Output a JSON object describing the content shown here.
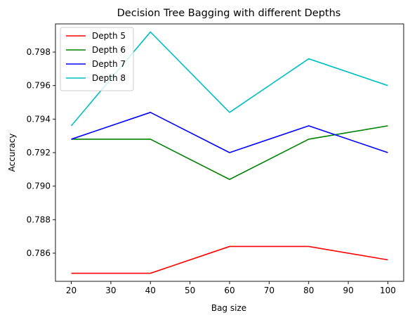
{
  "chart_data": {
    "type": "line",
    "title": "Decision Tree Bagging with different Depths",
    "xlabel": "Bag size",
    "ylabel": "Accuracy",
    "x": [
      20,
      40,
      60,
      80,
      100
    ],
    "xticks": [
      20,
      30,
      40,
      50,
      60,
      70,
      80,
      90,
      100
    ],
    "xlim": [
      16,
      104
    ],
    "yticks": [
      0.786,
      0.788,
      0.79,
      0.792,
      0.794,
      0.796,
      0.798
    ],
    "ylim": [
      0.78432,
      0.79968
    ],
    "grid": false,
    "legend_position": "upper-left",
    "series": [
      {
        "name": "Depth 5",
        "color": "#ff0000",
        "values": [
          0.7848,
          0.7848,
          0.7864,
          0.7864,
          0.7856
        ]
      },
      {
        "name": "Depth 6",
        "color": "#008000",
        "values": [
          0.7928,
          0.7928,
          0.7904,
          0.7928,
          0.7936
        ]
      },
      {
        "name": "Depth 7",
        "color": "#0000ff",
        "values": [
          0.7928,
          0.7944,
          0.792,
          0.7936,
          0.792
        ]
      },
      {
        "name": "Depth 8",
        "color": "#00bfbf",
        "values": [
          0.7936,
          0.7992,
          0.7944,
          0.7976,
          0.796
        ]
      }
    ]
  }
}
